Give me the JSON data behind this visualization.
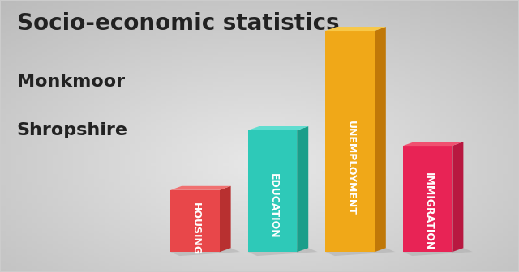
{
  "title": "Socio-economic statistics",
  "subtitle1": "Monkmoor",
  "subtitle2": "Shropshire",
  "categories": [
    "HOUSING",
    "EDUCATION",
    "UNEMPLOYMENT",
    "IMMIGRATION"
  ],
  "values": [
    0.28,
    0.55,
    1.0,
    0.48
  ],
  "bar_colors_front": [
    "#e8474a",
    "#2ec9b8",
    "#f0a818",
    "#e82355"
  ],
  "bar_colors_side": [
    "#b83030",
    "#1a9e8a",
    "#c07808",
    "#b81840"
  ],
  "bar_colors_top": [
    "#f07070",
    "#60ddd0",
    "#f8c848",
    "#f05070"
  ],
  "background_color": "#cccccc",
  "title_fontsize": 20,
  "subtitle_fontsize": 16,
  "label_fontsize": 9,
  "text_color_title": "#222222"
}
